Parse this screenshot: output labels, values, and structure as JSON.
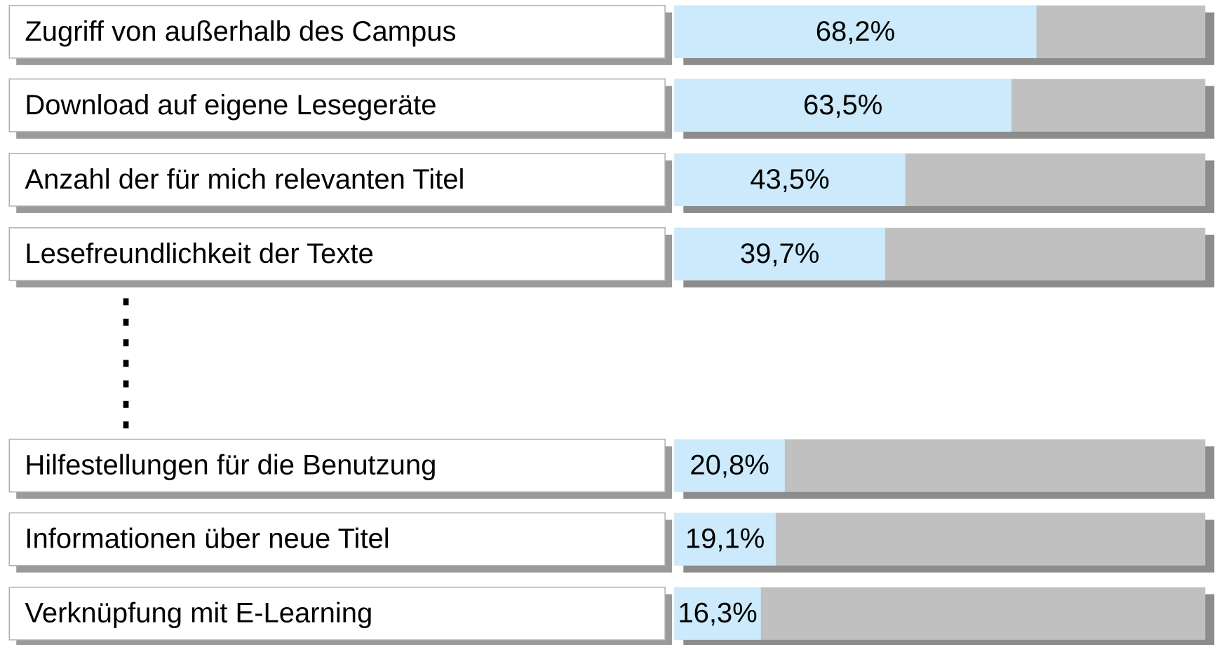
{
  "chart_data": {
    "type": "bar",
    "orientation": "horizontal",
    "categories": [
      "Zugriff von außerhalb des Campus",
      "Download auf eigene Lesegeräte",
      "Anzahl der für mich relevanten Titel",
      "Lesefreundlichkeit der Texte",
      "Hilfestellungen für die Benutzung",
      "Informationen über neue Titel",
      "Verknüpfung mit E-Learning"
    ],
    "values": [
      68.2,
      63.5,
      43.5,
      39.7,
      20.8,
      19.1,
      16.3
    ],
    "value_labels": [
      "68,2%",
      "63,5%",
      "43,5%",
      "39,7%",
      "20,8%",
      "19,1%",
      "16,3%"
    ],
    "xlim": [
      0,
      100
    ],
    "color": "#cceafb",
    "background_color": "#c0c0c0"
  }
}
